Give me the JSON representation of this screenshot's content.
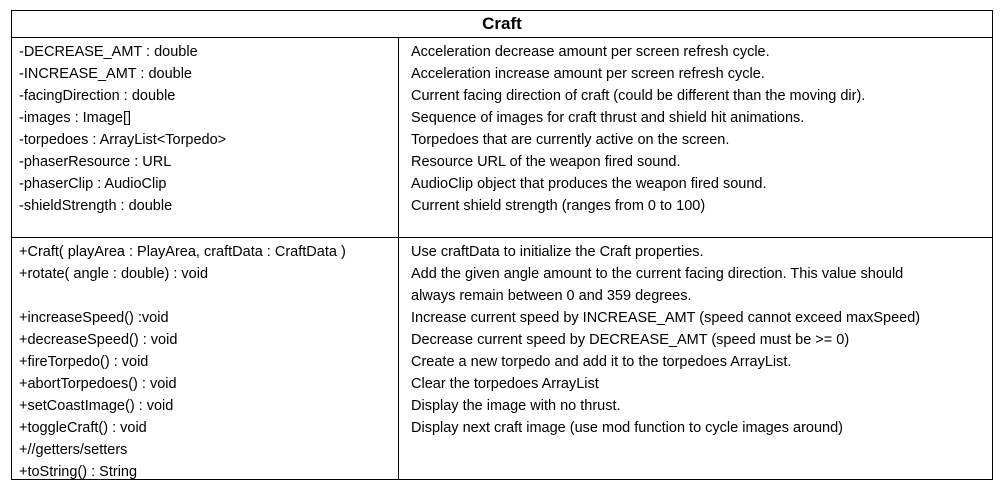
{
  "title": "Craft",
  "fields": [
    {
      "sig": "-DECREASE_AMT : double",
      "desc": "Acceleration decrease amount per screen refresh cycle."
    },
    {
      "sig": "-INCREASE_AMT : double",
      "desc": "Acceleration increase amount per screen refresh cycle."
    },
    {
      "sig": "-facingDirection : double",
      "desc": "Current facing direction of craft (could be different than the moving dir)."
    },
    {
      "sig": "-images : Image[]",
      "desc": "Sequence of images for craft thrust and shield hit animations."
    },
    {
      "sig": "-torpedoes : ArrayList<Torpedo>",
      "desc": "Torpedoes that are currently active on the screen."
    },
    {
      "sig": "-phaserResource : URL",
      "desc": "Resource URL of the weapon fired sound."
    },
    {
      "sig": "-phaserClip : AudioClip",
      "desc": "AudioClip object that produces the weapon fired sound."
    },
    {
      "sig": "-shieldStrength : double",
      "desc": "Current shield  strength (ranges from 0 to 100)"
    }
  ],
  "methods": [
    {
      "sig": "+Craft( playArea : PlayArea, craftData : CraftData )",
      "desc": "Use craftData to initialize the Craft properties."
    },
    {
      "sig": "+rotate( angle : double) : void",
      "desc": "Add the given angle amount to the current facing direction.  This value should"
    },
    {
      "sig": "",
      "desc": "always remain between 0 and 359 degrees."
    },
    {
      "sig": "+increaseSpeed() :void",
      "desc": "Increase current speed by INCREASE_AMT (speed cannot exceed maxSpeed)"
    },
    {
      "sig": "+decreaseSpeed() : void",
      "desc": "Decrease current  speed by DECREASE_AMT (speed must be >= 0)"
    },
    {
      "sig": "+fireTorpedo() : void",
      "desc": "Create a new torpedo and add it to the torpedoes ArrayList."
    },
    {
      "sig": "+abortTorpedoes() : void",
      "desc": "Clear the torpedoes ArrayList"
    },
    {
      "sig": "+setCoastImage() : void",
      "desc": "Display the image with no thrust."
    },
    {
      "sig": "+toggleCraft() : void",
      "desc": "Display next craft image (use mod function to cycle images around)"
    },
    {
      "sig": "+//getters/setters",
      "desc": ""
    },
    {
      "sig": "+toString() : String",
      "desc": ""
    }
  ]
}
